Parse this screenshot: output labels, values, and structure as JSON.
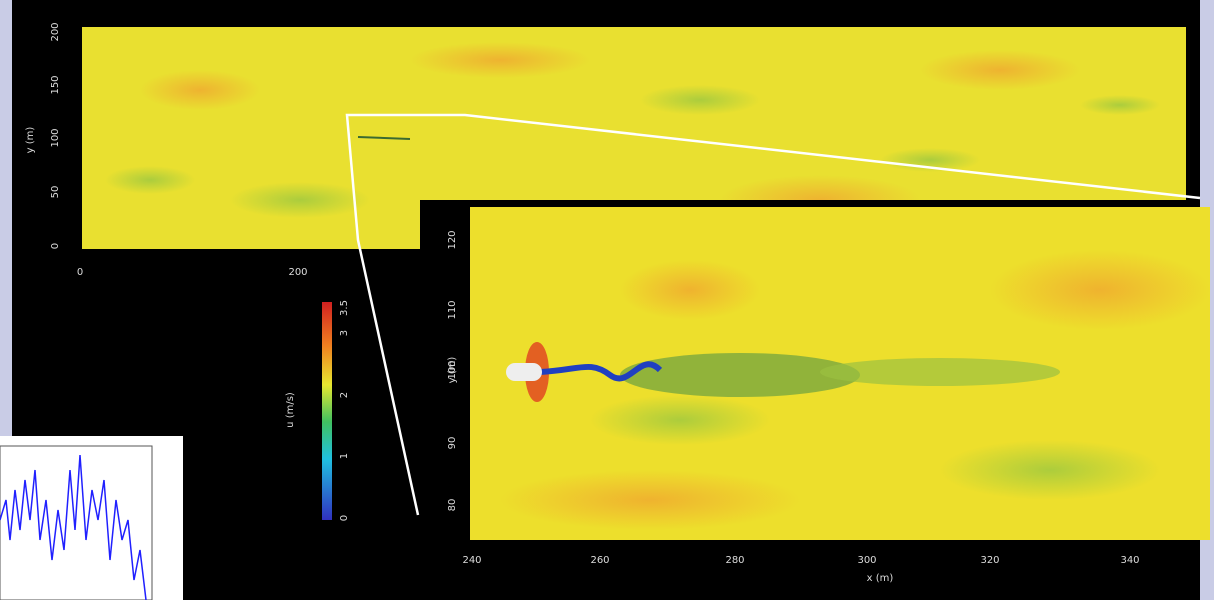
{
  "top_panel": {
    "y_axis_label": "y (m)",
    "yticks": [
      "0",
      "50",
      "100",
      "150",
      "200"
    ],
    "xticks": [
      "0",
      "200"
    ]
  },
  "zoom_panel": {
    "y_axis_label": "y (m)",
    "x_axis_label": "x (m)",
    "yticks": [
      "80",
      "90",
      "100",
      "110",
      "120"
    ],
    "xticks": [
      "240",
      "260",
      "280",
      "300",
      "320",
      "340"
    ]
  },
  "colorbar": {
    "label": "u (m/s)",
    "ticks": [
      "0",
      "1",
      "2",
      "3",
      "3.5"
    ]
  }
}
